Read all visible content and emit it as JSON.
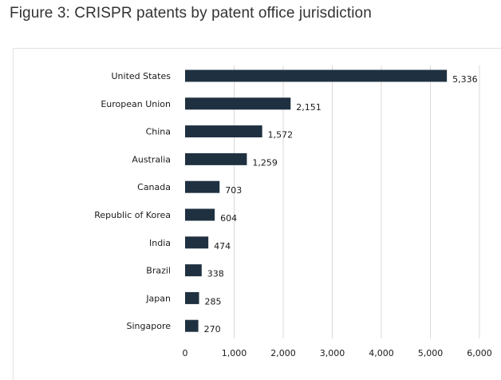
{
  "figure": {
    "title": "Figure 3: CRISPR patents by patent office jurisdiction"
  },
  "chart_data": {
    "type": "bar",
    "orientation": "horizontal",
    "title": "Figure 3: CRISPR patents by patent office jurisdiction",
    "xlabel": "",
    "ylabel": "",
    "categories": [
      "United States",
      "European Union",
      "China",
      "Australia",
      "Canada",
      "Republic of Korea",
      "India",
      "Brazil",
      "Japan",
      "Singapore"
    ],
    "values": [
      5336,
      2151,
      1572,
      1259,
      703,
      604,
      474,
      338,
      285,
      270
    ],
    "value_labels": [
      "5,336",
      "2,151",
      "1,572",
      "1,259",
      "703",
      "604",
      "474",
      "338",
      "285",
      "270"
    ],
    "xlim": [
      0,
      6000
    ],
    "xticks": [
      0,
      1000,
      2000,
      3000,
      4000,
      5000,
      6000
    ],
    "xtick_labels": [
      "0",
      "1,000",
      "2,000",
      "3,000",
      "4,000",
      "5,000",
      "6,000"
    ],
    "grid": "vertical",
    "legend": "none",
    "colors": {
      "bar": "#1f3140",
      "grid": "#d9d9d9",
      "text": "#1a1a1a"
    }
  }
}
